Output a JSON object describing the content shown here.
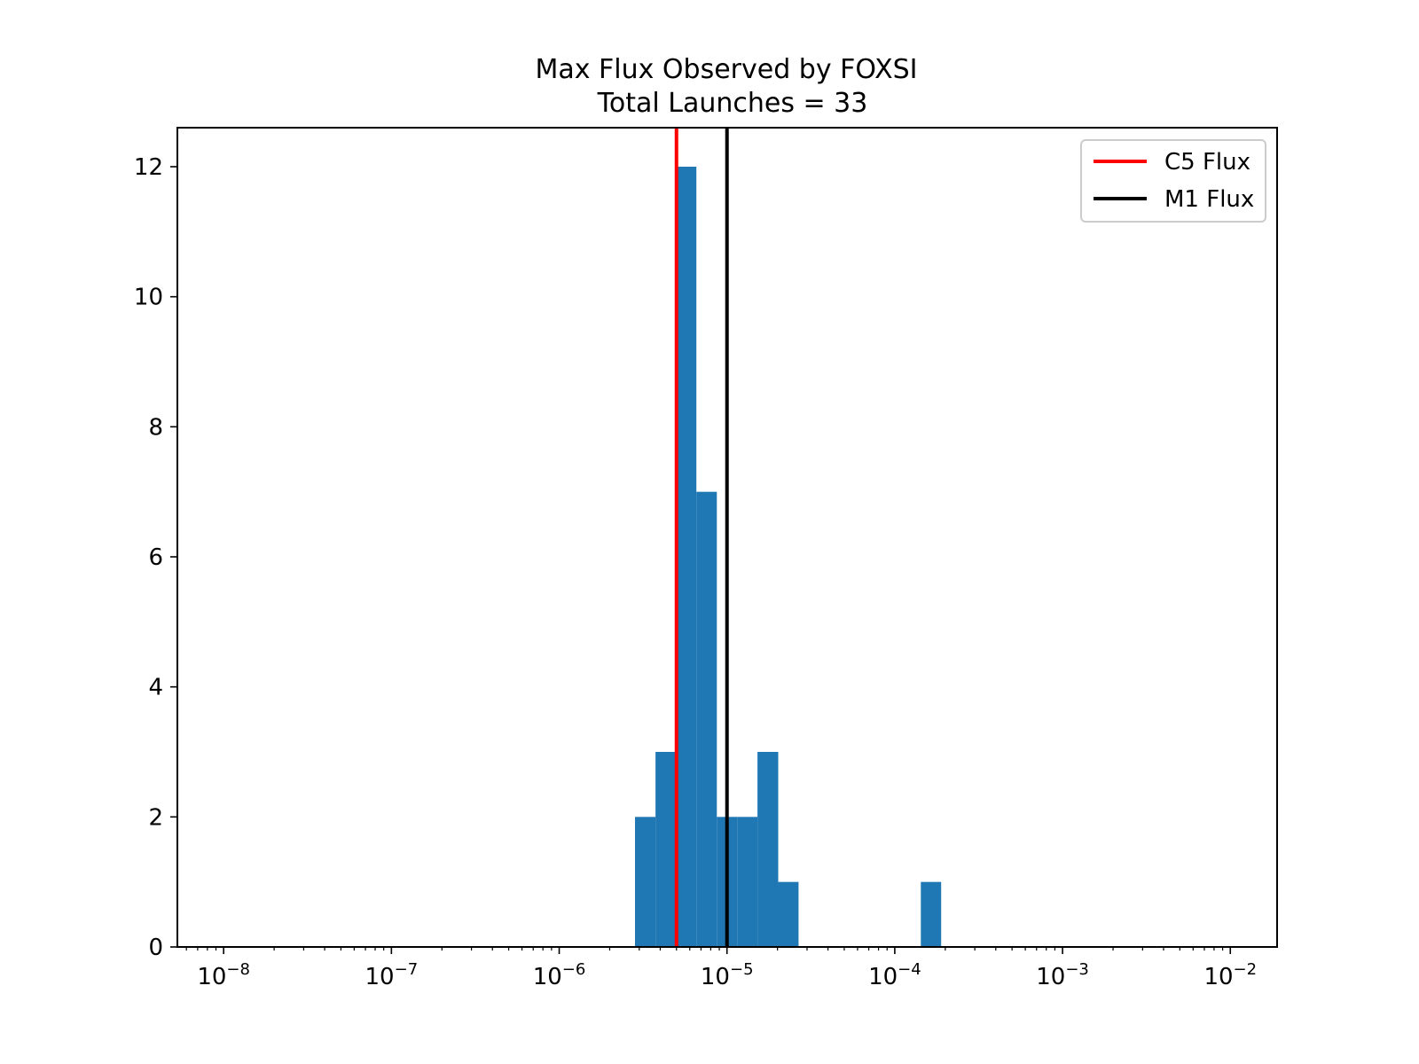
{
  "chart_data": {
    "type": "bar",
    "title": "Max Flux Observed by FOXSI",
    "subtitle": "Total Launches = 33",
    "xlabel": "",
    "ylabel": "",
    "xscale": "log",
    "xlim": [
      5.3e-09,
      0.019
    ],
    "ylim": [
      0,
      12.6
    ],
    "grid": false,
    "legend_position": "top-right",
    "bar_color": "#1f77b4",
    "x_ticks": [
      {
        "value": 1e-08,
        "base": "10",
        "exp": "−8"
      },
      {
        "value": 1e-07,
        "base": "10",
        "exp": "−7"
      },
      {
        "value": 1e-06,
        "base": "10",
        "exp": "−6"
      },
      {
        "value": 1e-05,
        "base": "10",
        "exp": "−5"
      },
      {
        "value": 0.0001,
        "base": "10",
        "exp": "−4"
      },
      {
        "value": 0.001,
        "base": "10",
        "exp": "−3"
      },
      {
        "value": 0.01,
        "base": "10",
        "exp": "−2"
      }
    ],
    "y_ticks": [
      {
        "value": 0,
        "label": "0"
      },
      {
        "value": 2,
        "label": "2"
      },
      {
        "value": 4,
        "label": "4"
      },
      {
        "value": 6,
        "label": "6"
      },
      {
        "value": 8,
        "label": "8"
      },
      {
        "value": 10,
        "label": "10"
      },
      {
        "value": 12,
        "label": "12"
      }
    ],
    "bins": [
      {
        "x0": 2.83e-06,
        "x1": 3.75e-06,
        "count": 2
      },
      {
        "x0": 3.75e-06,
        "x1": 4.96e-06,
        "count": 3
      },
      {
        "x0": 4.96e-06,
        "x1": 6.57e-06,
        "count": 12
      },
      {
        "x0": 6.57e-06,
        "x1": 8.7e-06,
        "count": 7
      },
      {
        "x0": 8.7e-06,
        "x1": 1.15e-05,
        "count": 2
      },
      {
        "x0": 1.15e-05,
        "x1": 1.52e-05,
        "count": 2
      },
      {
        "x0": 1.52e-05,
        "x1": 2.02e-05,
        "count": 3
      },
      {
        "x0": 2.02e-05,
        "x1": 2.67e-05,
        "count": 1
      },
      {
        "x0": 0.000143,
        "x1": 0.000189,
        "count": 1
      }
    ],
    "reference_lines": [
      {
        "name": "C5 Flux",
        "x": 5e-06,
        "color": "#ff0000"
      },
      {
        "name": "M1 Flux",
        "x": 1e-05,
        "color": "#000000"
      }
    ]
  }
}
